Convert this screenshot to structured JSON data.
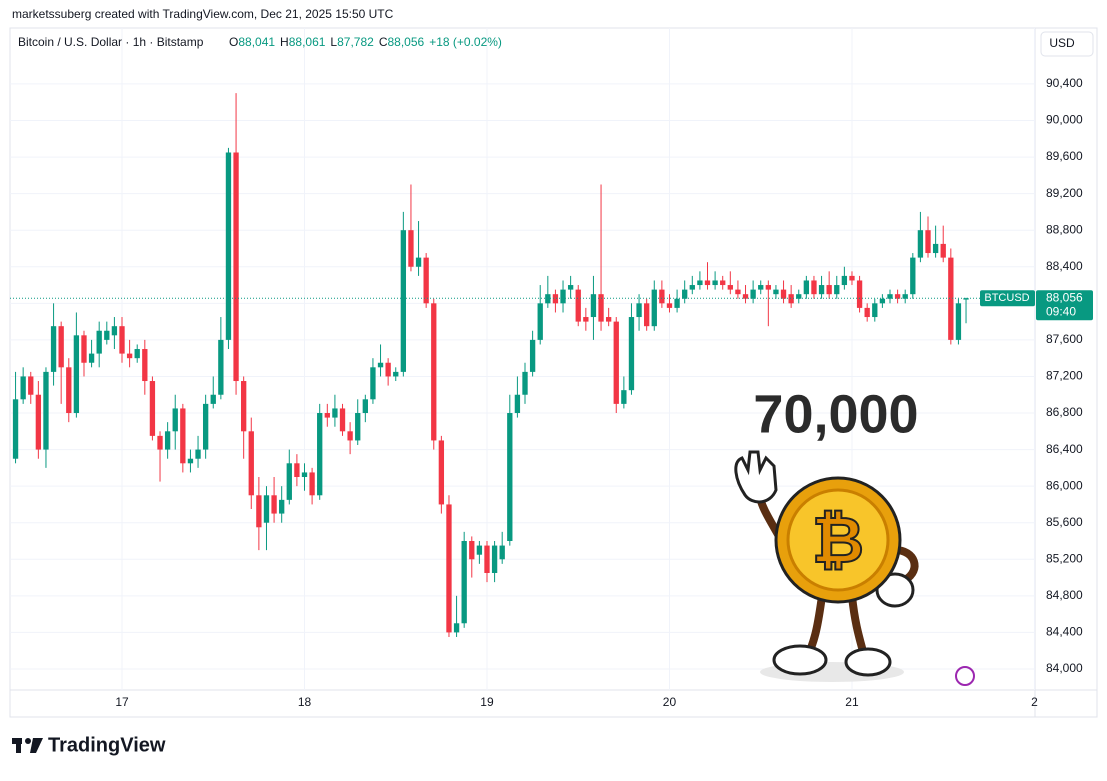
{
  "header": {
    "attribution": "marketssuberg created with TradingView.com, Dec 21, 2025 15:50 UTC",
    "symbol": "Bitcoin / U.S. Dollar · 1h · Bitstamp",
    "ohlc": [
      {
        "key": "O",
        "value": "88,041"
      },
      {
        "key": "H",
        "value": "88,061"
      },
      {
        "key": "L",
        "value": "87,782"
      },
      {
        "key": "C",
        "value": "88,056"
      }
    ],
    "change": "+18 (+0.02%)"
  },
  "footer": {
    "logo": "TradingView"
  },
  "chart_data": {
    "type": "candlestick",
    "currency": "USD",
    "symbol_tag": "BTCUSD",
    "countdown": "09:40",
    "watermark": "70,000",
    "last_price": {
      "value": 88056,
      "label": "88,056"
    },
    "up_color": "#089981",
    "down_color": "#f23645",
    "grid": true,
    "x": [
      10,
      11,
      12,
      13,
      14,
      15,
      16,
      17,
      18,
      19,
      20,
      21,
      22,
      23,
      24,
      25,
      26,
      27,
      28,
      29,
      30,
      31,
      32,
      33,
      34,
      35,
      36,
      37,
      38,
      39,
      40,
      41,
      42,
      43,
      44,
      45,
      46,
      47,
      48,
      49,
      50,
      51,
      52,
      53,
      54,
      55,
      56,
      57,
      58,
      59,
      60,
      61,
      62,
      63,
      64,
      65,
      66,
      67,
      68,
      69,
      70,
      71,
      72,
      73,
      74,
      75,
      76,
      77,
      78,
      79,
      80,
      81,
      82,
      83,
      84,
      85,
      86,
      87,
      88,
      89,
      90,
      91,
      92,
      93,
      94,
      95,
      96,
      97,
      98,
      99,
      100,
      101,
      102,
      103,
      104,
      105,
      106,
      107,
      108,
      109,
      110,
      111,
      112,
      113,
      114,
      115,
      116,
      117,
      118,
      119,
      120,
      121,
      122,
      123,
      124,
      125,
      126,
      127,
      128,
      129,
      130,
      131,
      132,
      133,
      134,
      135
    ],
    "open": [
      86300,
      86950,
      87200,
      87000,
      86400,
      87250,
      87750,
      87300,
      86800,
      87650,
      87350,
      87450,
      87600,
      87650,
      87750,
      87450,
      87400,
      87500,
      87150,
      86550,
      86400,
      86600,
      86850,
      86250,
      86300,
      86400,
      86900,
      87000,
      87600,
      89650,
      87150,
      86600,
      85900,
      85600,
      85900,
      85700,
      85850,
      86250,
      86100,
      86150,
      85900,
      86800,
      86750,
      86850,
      86600,
      86500,
      86800,
      86950,
      87300,
      87350,
      87200,
      87250,
      88800,
      88400,
      88500,
      88000,
      86500,
      85800,
      84400,
      84500,
      85400,
      85250,
      85350,
      85050,
      85200,
      85400,
      86800,
      87000,
      87250,
      87600,
      88000,
      88100,
      88000,
      88150,
      88150,
      87850,
      87850,
      88100,
      87850,
      87800,
      86900,
      87050,
      87850,
      88000,
      87750,
      88150,
      88000,
      87950,
      88050,
      88150,
      88200,
      88250,
      88200,
      88250,
      88200,
      88150,
      88100,
      88050,
      88150,
      88200,
      88100,
      88150,
      88100,
      88050,
      88100,
      88250,
      88100,
      88200,
      88100,
      88200,
      88300,
      88250,
      87950,
      87850,
      88000,
      88050,
      88100,
      88050,
      88100,
      88500,
      88800,
      88550,
      88650,
      88500,
      87600,
      88041
    ],
    "high": [
      87250,
      87300,
      87250,
      87150,
      87300,
      88000,
      87800,
      87400,
      87900,
      87700,
      87600,
      87800,
      87800,
      87850,
      87850,
      87600,
      87550,
      87600,
      87200,
      86600,
      86700,
      87000,
      86900,
      86400,
      86550,
      87000,
      87200,
      87850,
      89700,
      90300,
      87200,
      86750,
      86100,
      86000,
      86100,
      86000,
      86400,
      86350,
      86250,
      86200,
      86900,
      86900,
      87000,
      86900,
      86700,
      86950,
      87000,
      87400,
      87550,
      87400,
      87300,
      89000,
      89300,
      88900,
      88550,
      88050,
      86550,
      85900,
      84800,
      85500,
      85450,
      85400,
      85400,
      85400,
      85500,
      87000,
      87200,
      87350,
      87700,
      88200,
      88300,
      88150,
      88250,
      88300,
      88200,
      87950,
      88300,
      89300,
      87950,
      87850,
      87200,
      88000,
      88100,
      88050,
      88250,
      88250,
      88100,
      88150,
      88250,
      88300,
      88350,
      88450,
      88350,
      88300,
      88350,
      88250,
      88200,
      88250,
      88250,
      88250,
      88200,
      88250,
      88200,
      88150,
      88300,
      88300,
      88300,
      88350,
      88300,
      88400,
      88350,
      88300,
      88000,
      88050,
      88100,
      88150,
      88150,
      88150,
      88550,
      89000,
      88950,
      88850,
      88850,
      88600,
      88050,
      88061
    ],
    "low": [
      86250,
      86900,
      86900,
      86300,
      86200,
      87100,
      86900,
      86700,
      86750,
      87200,
      87300,
      87300,
      87550,
      87500,
      87350,
      87300,
      87350,
      87000,
      86500,
      86050,
      86300,
      86400,
      86150,
      86150,
      86200,
      86300,
      86850,
      86950,
      87500,
      87000,
      86300,
      85750,
      85300,
      85300,
      85600,
      85600,
      85800,
      86000,
      85950,
      85800,
      85850,
      86650,
      86650,
      86550,
      86350,
      86450,
      86700,
      86900,
      87200,
      87100,
      87150,
      87200,
      88350,
      88300,
      87950,
      86400,
      85700,
      84350,
      84350,
      84450,
      85000,
      85150,
      84950,
      84950,
      85150,
      85350,
      86750,
      86900,
      87200,
      87550,
      87950,
      87900,
      87900,
      88050,
      87750,
      87700,
      87600,
      87700,
      87750,
      86800,
      86850,
      87000,
      87700,
      87700,
      87700,
      87950,
      87900,
      87900,
      88000,
      88100,
      88150,
      88150,
      88150,
      88150,
      88100,
      88050,
      88000,
      88000,
      88100,
      87750,
      88050,
      88000,
      87950,
      88000,
      88050,
      88050,
      88050,
      88050,
      88050,
      88150,
      88200,
      87900,
      87800,
      87800,
      87950,
      88000,
      88000,
      88000,
      88050,
      88450,
      88500,
      88500,
      88450,
      87550,
      87550,
      87782
    ],
    "close": [
      86950,
      87200,
      87000,
      86400,
      87250,
      87750,
      87300,
      86800,
      87650,
      87350,
      87450,
      87700,
      87700,
      87750,
      87450,
      87400,
      87500,
      87150,
      86550,
      86400,
      86600,
      86850,
      86250,
      86300,
      86400,
      86900,
      87000,
      87600,
      89650,
      87150,
      86600,
      85900,
      85550,
      85900,
      85700,
      85850,
      86250,
      86100,
      86150,
      85900,
      86800,
      86750,
      86850,
      86600,
      86500,
      86800,
      86950,
      87300,
      87350,
      87200,
      87250,
      88800,
      88400,
      88500,
      88000,
      86500,
      85800,
      84400,
      84500,
      85400,
      85200,
      85350,
      85050,
      85350,
      85350,
      86800,
      87000,
      87250,
      87600,
      88000,
      88100,
      88000,
      88150,
      88200,
      87800,
      87800,
      88100,
      87800,
      87800,
      86900,
      87050,
      87850,
      88000,
      87750,
      88150,
      88000,
      87950,
      88050,
      88150,
      88200,
      88250,
      88200,
      88250,
      88200,
      88150,
      88100,
      88050,
      88150,
      88200,
      88150,
      88150,
      88050,
      88000,
      88100,
      88250,
      88100,
      88200,
      88100,
      88200,
      88300,
      88250,
      87950,
      87850,
      88000,
      88050,
      88100,
      88050,
      88100,
      88500,
      88800,
      88550,
      88650,
      88500,
      87600,
      88000,
      88056
    ],
    "xlim": [
      9.27,
      144.07
    ],
    "xticks": [
      {
        "value": 24,
        "label": "17"
      },
      {
        "value": 48,
        "label": "18"
      },
      {
        "value": 72,
        "label": "19"
      },
      {
        "value": 96,
        "label": "20"
      },
      {
        "value": 120,
        "label": "21"
      },
      {
        "value": 144,
        "label": "2"
      }
    ],
    "ylim": [
      83770,
      90990
    ],
    "yticks": [
      {
        "value": 84000,
        "label": "84,000"
      },
      {
        "value": 84400,
        "label": "84,400"
      },
      {
        "value": 84800,
        "label": "84,800"
      },
      {
        "value": 85200,
        "label": "85,200"
      },
      {
        "value": 85600,
        "label": "85,600"
      },
      {
        "value": 86000,
        "label": "86,000"
      },
      {
        "value": 86400,
        "label": "86,400"
      },
      {
        "value": 86800,
        "label": "86,800"
      },
      {
        "value": 87200,
        "label": "87,200"
      },
      {
        "value": 87600,
        "label": "87,600"
      },
      {
        "value": 88000,
        "label": "88,000"
      },
      {
        "value": 88400,
        "label": "88,400"
      },
      {
        "value": 88800,
        "label": "88,800"
      },
      {
        "value": 89200,
        "label": "89,200"
      },
      {
        "value": 89600,
        "label": "89,600"
      },
      {
        "value": 90000,
        "label": "90,000"
      },
      {
        "value": 90400,
        "label": "90,400"
      }
    ]
  }
}
